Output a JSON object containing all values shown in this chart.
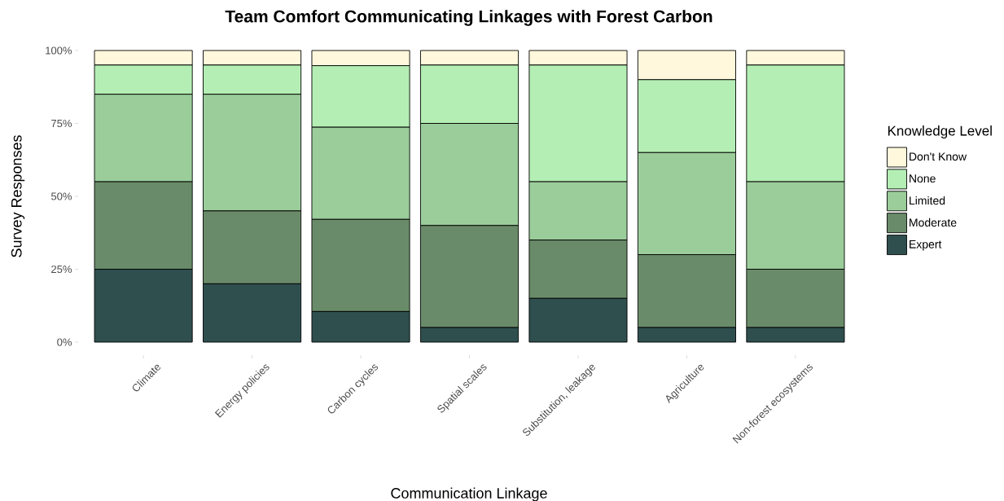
{
  "chart_data": {
    "type": "bar",
    "stacked": true,
    "title": "Team Comfort Communicating Linkages with Forest Carbon",
    "xlabel": "Communication Linkage",
    "ylabel": "Survey Responses",
    "legend_title": "Knowledge Level",
    "legend": "right",
    "categories": [
      "Climate",
      "Energy policies",
      "Carbon cycles",
      "Spatial scales",
      "Substitution, leakage",
      "Agriculture",
      "Non-forest ecosystems"
    ],
    "ylim": [
      0,
      100
    ],
    "yticks": [
      {
        "value": 0,
        "label": "0%"
      },
      {
        "value": 25,
        "label": "25%"
      },
      {
        "value": 50,
        "label": "50%"
      },
      {
        "value": 75,
        "label": "75%"
      },
      {
        "value": 100,
        "label": "100%"
      }
    ],
    "series": [
      {
        "name": "Expert",
        "color": "#2f4f4f",
        "values": [
          25,
          20,
          10.5,
          5,
          15,
          5,
          5
        ]
      },
      {
        "name": "Moderate",
        "color": "#698b69",
        "values": [
          30,
          25,
          31.6,
          35,
          20,
          25,
          20
        ]
      },
      {
        "name": "Limited",
        "color": "#9bcd9b",
        "values": [
          30,
          40,
          31.6,
          35,
          20,
          35,
          30
        ]
      },
      {
        "name": "None",
        "color": "#b4eeb4",
        "values": [
          10,
          10,
          21.1,
          20,
          40,
          25,
          40
        ]
      },
      {
        "name": "Don't Know",
        "color": "#fff8dc",
        "values": [
          5,
          5,
          5.2,
          5,
          5,
          10,
          5
        ]
      }
    ]
  }
}
